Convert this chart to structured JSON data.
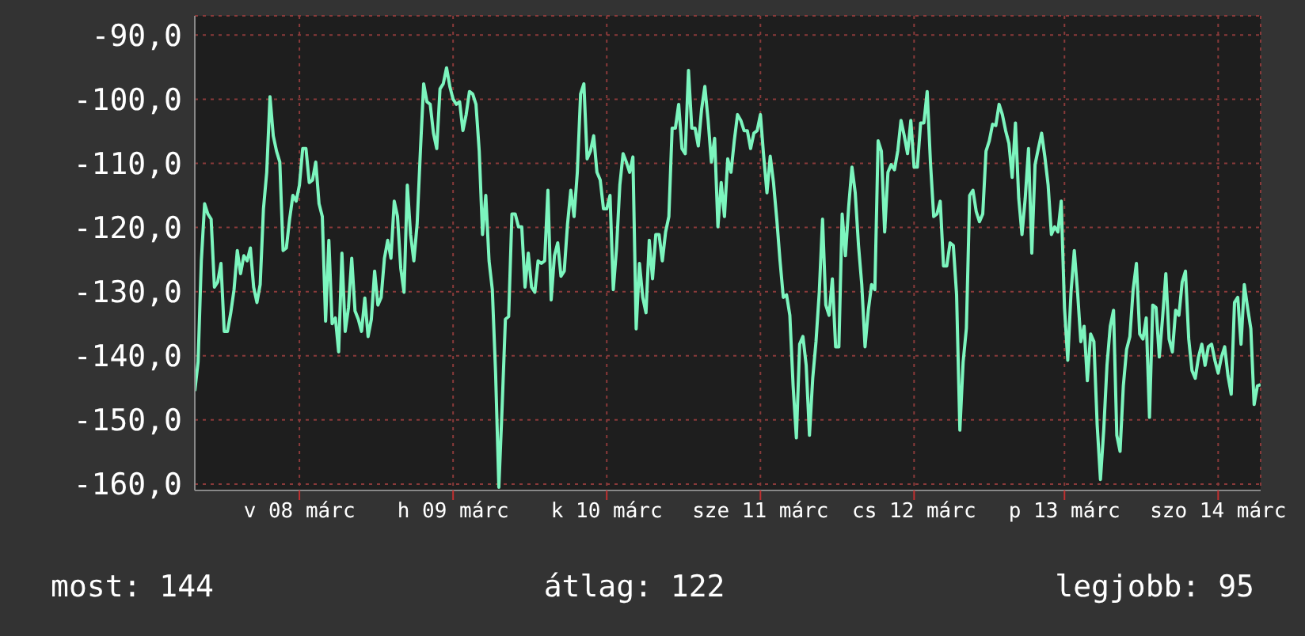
{
  "chart_data": {
    "type": "line",
    "series": [
      {
        "color": "#7cf5be",
        "values": [
          -145.5,
          -141,
          -125.2,
          -116.3,
          -117.9,
          -118.7,
          -129.3,
          -128.5,
          -125.6,
          -136.2,
          -136.2,
          -133.3,
          -129.7,
          -123.6,
          -127.2,
          -124.4,
          -125.2,
          -123.2,
          -129.3,
          -131.7,
          -128.9,
          -117.1,
          -111.4,
          -99.6,
          -105.7,
          -108.1,
          -109.8,
          -123.6,
          -123.2,
          -118.7,
          -115,
          -115.9,
          -113.4,
          -107.7,
          -107.7,
          -113,
          -112.6,
          -109.8,
          -116.3,
          -118.3,
          -134.6,
          -122,
          -135,
          -134.1,
          -139.4,
          -124,
          -136.2,
          -132.5,
          -124.8,
          -133,
          -134.3,
          -136.2,
          -131,
          -137,
          -134.3,
          -126.8,
          -132.1,
          -130.9,
          -124.8,
          -122,
          -124.8,
          -115.9,
          -118.3,
          -126.4,
          -130.1,
          -113.4,
          -121.1,
          -125.2,
          -119.5,
          -108.1,
          -97.6,
          -100.4,
          -100.8,
          -105.3,
          -107.7,
          -98.4,
          -97.6,
          -95.1,
          -98,
          -100,
          -100.8,
          -100.4,
          -104.9,
          -102.4,
          -98.8,
          -99.2,
          -100.8,
          -108.1,
          -121.1,
          -115,
          -125.2,
          -129.7,
          -142.7,
          -160.5,
          -148,
          -134.3,
          -133.9,
          -117.9,
          -117.9,
          -119.9,
          -119.9,
          -129.3,
          -124,
          -129.3,
          -130.1,
          -125.2,
          -125.6,
          -125.2,
          -114.2,
          -131.3,
          -124.4,
          -122.4,
          -127.6,
          -126.8,
          -119.5,
          -114.2,
          -118.3,
          -111.4,
          -99.2,
          -97.6,
          -109.3,
          -108.1,
          -105.7,
          -111.4,
          -112.6,
          -117.1,
          -117.1,
          -115,
          -129.7,
          -123.2,
          -113.4,
          -108.5,
          -109.8,
          -111.4,
          -109,
          -135.8,
          -125.6,
          -130.9,
          -133.3,
          -122,
          -128,
          -121.1,
          -121.1,
          -125.2,
          -120.7,
          -118.3,
          -104.5,
          -104.5,
          -100.8,
          -107.7,
          -108.5,
          -95.5,
          -104.5,
          -104.5,
          -107.3,
          -101.6,
          -98,
          -103.3,
          -109.8,
          -106.1,
          -119.9,
          -113,
          -118.3,
          -109.3,
          -111.4,
          -106.5,
          -102.4,
          -103.3,
          -104.9,
          -104.9,
          -107.7,
          -105.3,
          -104.9,
          -102.4,
          -108.9,
          -114.6,
          -108.9,
          -113,
          -118.7,
          -125.2,
          -130.9,
          -130.5,
          -133.7,
          -144.7,
          -152.8,
          -138.2,
          -137,
          -141.5,
          -152.4,
          -143.5,
          -137.8,
          -130.1,
          -118.7,
          -132.1,
          -133.7,
          -128,
          -138.6,
          -138.6,
          -117.9,
          -124.4,
          -116.7,
          -110.6,
          -114.6,
          -122.8,
          -128.9,
          -138.6,
          -132.9,
          -128.9,
          -129.7,
          -106.5,
          -108.1,
          -120.7,
          -111.4,
          -110.2,
          -111,
          -108.1,
          -103.3,
          -105.7,
          -108.5,
          -103.3,
          -110.6,
          -110.6,
          -103.7,
          -103.7,
          -98.8,
          -109.8,
          -118.3,
          -117.9,
          -115.9,
          -126,
          -126,
          -122.4,
          -122.8,
          -130.5,
          -151.6,
          -141,
          -135.7,
          -115,
          -114.2,
          -117.5,
          -119.1,
          -117.9,
          -108.1,
          -106.5,
          -103.9,
          -104.1,
          -100.8,
          -102.4,
          -104.9,
          -106.9,
          -112.2,
          -103.7,
          -115.4,
          -121.1,
          -115.4,
          -107.7,
          -124,
          -110.2,
          -107.7,
          -105.3,
          -109,
          -113.4,
          -121.1,
          -119.9,
          -120.7,
          -115.9,
          -132.5,
          -140.7,
          -130.1,
          -123.6,
          -130.1,
          -137.8,
          -135.4,
          -143.9,
          -136.6,
          -137.8,
          -150.8,
          -159.3,
          -151.6,
          -141.5,
          -135.4,
          -132.9,
          -152.4,
          -154.9,
          -144.7,
          -139,
          -137,
          -129.7,
          -125.6,
          -136.6,
          -137.4,
          -134.1,
          -149.6,
          -132.1,
          -132.5,
          -140.2,
          -134.1,
          -127.2,
          -137.4,
          -139.4,
          -132.9,
          -133.7,
          -128.5,
          -126.8,
          -137.4,
          -142.3,
          -143.5,
          -140.2,
          -138.2,
          -141.5,
          -138.6,
          -138.2,
          -140.7,
          -142.7,
          -140.2,
          -138.6,
          -143.1,
          -146,
          -131.7,
          -130.9,
          -138.2,
          -128.9,
          -132.5,
          -135.8,
          -147.6,
          -144.7,
          -144.5
        ]
      }
    ],
    "ylim": [
      -161,
      -87
    ],
    "categories": [
      null,
      null,
      null,
      null,
      null,
      null,
      null,
      null,
      null,
      null,
      null,
      null,
      null,
      null,
      null,
      null,
      null,
      null,
      null,
      null,
      null,
      null,
      null,
      null,
      null,
      null,
      null,
      null,
      null,
      null,
      null,
      null,
      "v 08 márc",
      null,
      null,
      null,
      null,
      null,
      null,
      null,
      null,
      null,
      null,
      null,
      null,
      null,
      null,
      null,
      null,
      null,
      null,
      null,
      null,
      null,
      null,
      null,
      null,
      null,
      null,
      null,
      null,
      null,
      null,
      null,
      null,
      null,
      null,
      null,
      null,
      null,
      null,
      null,
      null,
      null,
      null,
      null,
      null,
      null,
      null,
      "h 09 márc",
      null,
      null,
      null,
      null,
      null,
      null,
      null,
      null,
      null,
      null,
      null,
      null,
      null,
      null,
      null,
      null,
      null,
      null,
      null,
      null,
      null,
      null,
      null,
      null,
      null,
      null,
      null,
      null,
      null,
      null,
      null,
      null,
      null,
      null,
      null,
      null,
      null,
      null,
      null,
      null,
      null,
      null,
      null,
      null,
      null,
      null,
      "k 10 márc",
      null,
      null,
      null,
      null,
      null,
      null,
      null,
      null,
      null,
      null,
      null,
      null,
      null,
      null,
      null,
      null,
      null,
      null,
      null,
      null,
      null,
      null,
      null,
      null,
      null,
      null,
      null,
      null,
      null,
      null,
      null,
      null,
      null,
      null,
      null,
      null,
      null,
      null,
      null,
      null,
      null,
      null,
      null,
      null,
      null,
      null,
      "sze 11 márc",
      null,
      null,
      null,
      null,
      null,
      null,
      null,
      null,
      null,
      null,
      null,
      null,
      null,
      null,
      null,
      null,
      null,
      null,
      null,
      null,
      null,
      null,
      null,
      null,
      null,
      null,
      null,
      null,
      null,
      null,
      null,
      null,
      null,
      null,
      null,
      null,
      null,
      null,
      null,
      null,
      null,
      null,
      null,
      null,
      null,
      null,
      "cs 12 márc",
      null,
      null,
      null,
      null,
      null,
      null,
      null,
      null,
      null,
      null,
      null,
      null,
      null,
      null,
      null,
      null,
      null,
      null,
      null,
      null,
      null,
      null,
      null,
      null,
      null,
      null,
      null,
      null,
      null,
      null,
      null,
      null,
      null,
      null,
      null,
      null,
      null,
      null,
      null,
      null,
      null,
      null,
      null,
      null,
      null,
      "p 13 márc",
      null,
      null,
      null,
      null,
      null,
      null,
      null,
      null,
      null,
      null,
      null,
      null,
      null,
      null,
      null,
      null,
      null,
      null,
      null,
      null,
      null,
      null,
      null,
      null,
      null,
      null,
      null,
      null,
      null,
      null,
      null,
      null,
      null,
      null,
      null,
      null,
      null,
      null,
      null,
      null,
      null,
      null,
      null,
      null,
      null,
      null,
      "szo 14 márc",
      null,
      null,
      null,
      null,
      null,
      null,
      null,
      null,
      null,
      null,
      null,
      null,
      null
    ],
    "yticks": [
      {
        "value": -90,
        "label": "-90,0"
      },
      {
        "value": -100,
        "label": "-100,0"
      },
      {
        "value": -110,
        "label": "-110,0"
      },
      {
        "value": -120,
        "label": "-120,0"
      },
      {
        "value": -130,
        "label": "-130,0"
      },
      {
        "value": -140,
        "label": "-140,0"
      },
      {
        "value": -150,
        "label": "-150,0"
      },
      {
        "value": -160,
        "label": "-160,0"
      }
    ],
    "grid": true,
    "annotations": [
      "most: 144",
      "átlag: 122",
      "legjobb: 95"
    ]
  }
}
